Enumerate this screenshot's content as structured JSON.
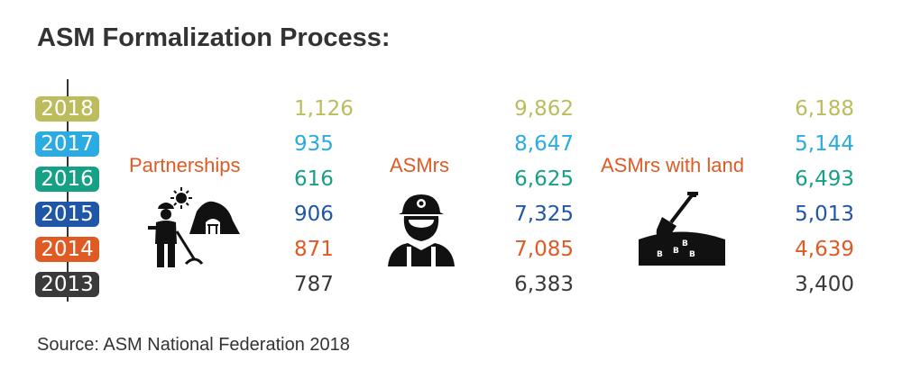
{
  "title": "ASM Formalization Process:",
  "source": "Source: ASM National Federation 2018",
  "colors": {
    "2018": "#bcbc5c",
    "2017": "#2aabe2",
    "2016": "#16a085",
    "2015": "#1f56a8",
    "2014": "#e05a24",
    "2013": "#3a3a3a",
    "label": "#e05a24"
  },
  "icons": [
    "miner-with-pickaxe-icon",
    "miner-helmet-icon",
    "shovel-in-land-icon"
  ],
  "chart_data": {
    "type": "table",
    "years": [
      "2018",
      "2017",
      "2016",
      "2015",
      "2014",
      "2013"
    ],
    "series": [
      {
        "name": "Partnerships",
        "values": [
          "1,126",
          "935",
          "616",
          "906",
          "871",
          "787"
        ]
      },
      {
        "name": "ASMrs",
        "values": [
          "9,862",
          "8,647",
          "6,625",
          "7,325",
          "7,085",
          "6,383"
        ]
      },
      {
        "name": "ASMrs with land",
        "values": [
          "6,188",
          "5,144",
          "6,493",
          "5,013",
          "4,639",
          "3,400"
        ]
      }
    ]
  }
}
